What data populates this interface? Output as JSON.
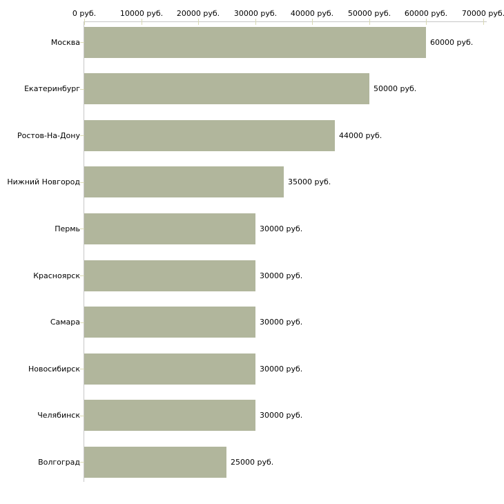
{
  "chart_data": {
    "type": "bar",
    "orientation": "horizontal",
    "title": "",
    "xlabel": "",
    "ylabel": "",
    "categories": [
      "Москва",
      "Екатеринбург",
      "Ростов-На-Дону",
      "Нижний Новгород",
      "Пермь",
      "Красноярск",
      "Самара",
      "Новосибирск",
      "Челябинск",
      "Волгоград"
    ],
    "values": [
      60000,
      50000,
      44000,
      35000,
      30000,
      30000,
      30000,
      30000,
      30000,
      25000
    ],
    "value_labels": [
      "60000 руб.",
      "50000 руб.",
      "44000 руб.",
      "35000 руб.",
      "30000 руб.",
      "30000 руб.",
      "30000 руб.",
      "30000 руб.",
      "30000 руб.",
      "25000 руб."
    ],
    "x_ticks": [
      0,
      10000,
      20000,
      30000,
      40000,
      50000,
      60000,
      70000
    ],
    "x_tick_labels": [
      "0 руб.",
      "10000 руб.",
      "20000 руб.",
      "30000 руб.",
      "40000 руб.",
      "50000 руб.",
      "60000 руб.",
      "70000 руб."
    ],
    "xlim": [
      0,
      70000
    ],
    "grid": false,
    "legend": false,
    "colors": {
      "bar": "#b1b69c",
      "axis": "#c6c6c6",
      "tick": "#d9d9b3",
      "text": "#000000",
      "background": "#ffffff"
    }
  }
}
